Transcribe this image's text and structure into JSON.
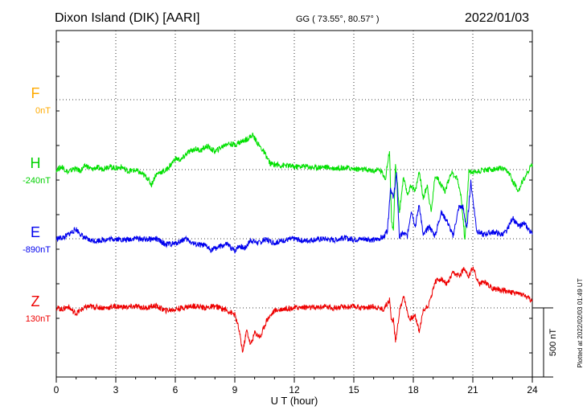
{
  "header": {
    "station": "Dixon Island (DIK)  [AARI]",
    "coords": "GG ( 73.55°,  80.57° )",
    "date": "2022/01/03"
  },
  "footer": {
    "plotted": "Plotted at 2022/02/03 01:49 UT"
  },
  "chart_data": {
    "type": "line",
    "xlabel": "U T (hour)",
    "xlim": [
      0,
      24
    ],
    "xticks": [
      0,
      3,
      6,
      9,
      12,
      15,
      18,
      21,
      24
    ],
    "grid": true,
    "scale_bar": "500 nT",
    "series": [
      {
        "name": "F",
        "baseline_label": "0nT",
        "color": "#ffaa00",
        "x": [],
        "y": []
      },
      {
        "name": "H",
        "baseline_label": "-240nT",
        "color": "#00e000",
        "x": [
          0,
          0.3,
          0.6,
          0.9,
          1.2,
          1.5,
          1.8,
          2.0,
          2.3,
          2.6,
          3.0,
          3.3,
          3.6,
          4.0,
          4.3,
          4.6,
          4.8,
          5.0,
          5.2,
          5.5,
          5.8,
          6.0,
          6.3,
          6.6,
          7.0,
          7.3,
          7.6,
          8.0,
          8.3,
          8.6,
          9.0,
          9.3,
          9.6,
          9.9,
          10.2,
          10.5,
          10.8,
          11.0,
          11.3,
          11.6,
          12.0,
          12.5,
          13.0,
          13.5,
          14.0,
          14.5,
          15.0,
          15.5,
          16.0,
          16.3,
          16.6,
          16.8,
          16.9,
          17.0,
          17.1,
          17.2,
          17.3,
          17.5,
          17.7,
          17.9,
          18.1,
          18.3,
          18.5,
          18.7,
          18.9,
          19.1,
          19.3,
          19.6,
          19.9,
          20.2,
          20.4,
          20.6,
          20.8,
          21.0,
          21.3,
          21.6,
          22.0,
          22.4,
          22.8,
          23.0,
          23.3,
          23.6,
          24.0
        ],
        "y": [
          -240,
          -220,
          -260,
          -230,
          -250,
          -210,
          -240,
          -225,
          -235,
          -215,
          -230,
          -220,
          -250,
          -245,
          -270,
          -300,
          -350,
          -280,
          -260,
          -250,
          -200,
          -160,
          -170,
          -120,
          -90,
          -100,
          -70,
          -110,
          -80,
          -50,
          -60,
          -40,
          -20,
          10,
          -60,
          -120,
          -200,
          -200,
          -210,
          -210,
          -220,
          -215,
          -225,
          -220,
          -230,
          -225,
          -235,
          -240,
          -250,
          -240,
          -300,
          -100,
          -600,
          -700,
          -200,
          -350,
          -550,
          -300,
          -420,
          -350,
          -400,
          -250,
          -450,
          -350,
          -550,
          -280,
          -320,
          -400,
          -260,
          -300,
          -420,
          -750,
          -250,
          -260,
          -250,
          -240,
          -240,
          -230,
          -260,
          -320,
          -390,
          -300,
          -200
        ]
      },
      {
        "name": "E",
        "baseline_label": "-890nT",
        "color": "#0000ee",
        "x": [
          0,
          0.4,
          0.8,
          1.0,
          1.3,
          1.6,
          2.0,
          2.5,
          3.0,
          3.5,
          4.0,
          4.5,
          5.0,
          5.5,
          6.0,
          6.5,
          7.0,
          7.5,
          7.8,
          8.2,
          8.6,
          9.0,
          9.2,
          9.5,
          9.8,
          10.2,
          10.6,
          11.0,
          11.5,
          12.0,
          12.5,
          13.0,
          13.5,
          14.0,
          14.5,
          15.0,
          15.5,
          16.0,
          16.5,
          16.7,
          16.85,
          17.0,
          17.15,
          17.3,
          17.5,
          17.7,
          17.9,
          18.1,
          18.3,
          18.5,
          18.8,
          19.1,
          19.4,
          19.7,
          20.0,
          20.3,
          20.5,
          20.7,
          20.9,
          21.2,
          21.5,
          21.8,
          22.1,
          22.4,
          22.7,
          23.0,
          23.3,
          23.6,
          24.0
        ],
        "y": [
          -890,
          -880,
          -840,
          -820,
          -870,
          -900,
          -905,
          -895,
          -890,
          -900,
          -885,
          -895,
          -890,
          -930,
          -925,
          -890,
          -930,
          -940,
          -970,
          -950,
          -930,
          -980,
          -940,
          -960,
          -900,
          -920,
          -895,
          -920,
          -900,
          -890,
          -905,
          -895,
          -890,
          -900,
          -885,
          -895,
          -890,
          -900,
          -880,
          -830,
          -520,
          -600,
          -420,
          -880,
          -850,
          -870,
          -680,
          -800,
          -640,
          -870,
          -800,
          -870,
          -700,
          -760,
          -870,
          -660,
          -660,
          -820,
          -480,
          -830,
          -860,
          -850,
          -840,
          -860,
          -840,
          -740,
          -800,
          -780,
          -860
        ]
      },
      {
        "name": "Z",
        "baseline_label": "130nT",
        "color": "#ee0000",
        "x": [
          0,
          0.3,
          0.6,
          0.8,
          1.0,
          1.3,
          1.6,
          2.0,
          2.5,
          3.0,
          3.5,
          4.0,
          4.5,
          5.0,
          5.5,
          6.0,
          6.5,
          7.0,
          7.5,
          8.0,
          8.5,
          9.0,
          9.2,
          9.4,
          9.6,
          9.8,
          10.0,
          10.3,
          10.6,
          11.0,
          11.5,
          12.0,
          12.5,
          13.0,
          13.5,
          14.0,
          14.5,
          15.0,
          15.5,
          16.0,
          16.5,
          16.8,
          16.9,
          17.0,
          17.1,
          17.3,
          17.5,
          17.8,
          18.1,
          18.3,
          18.5,
          18.8,
          19.1,
          19.4,
          19.7,
          20.0,
          20.3,
          20.6,
          20.8,
          21.0,
          21.3,
          21.6,
          22.0,
          22.5,
          23.0,
          23.5,
          24.0
        ],
        "y": [
          130,
          120,
          140,
          110,
          90,
          120,
          140,
          135,
          130,
          140,
          135,
          140,
          130,
          145,
          110,
          120,
          135,
          145,
          130,
          140,
          120,
          80,
          -20,
          -190,
          -30,
          -140,
          -50,
          -80,
          40,
          110,
          125,
          130,
          135,
          130,
          140,
          130,
          135,
          140,
          130,
          140,
          120,
          190,
          30,
          50,
          -120,
          100,
          220,
          50,
          70,
          -40,
          110,
          160,
          320,
          340,
          300,
          380,
          360,
          420,
          350,
          430,
          300,
          320,
          270,
          260,
          240,
          230,
          180
        ]
      }
    ]
  }
}
